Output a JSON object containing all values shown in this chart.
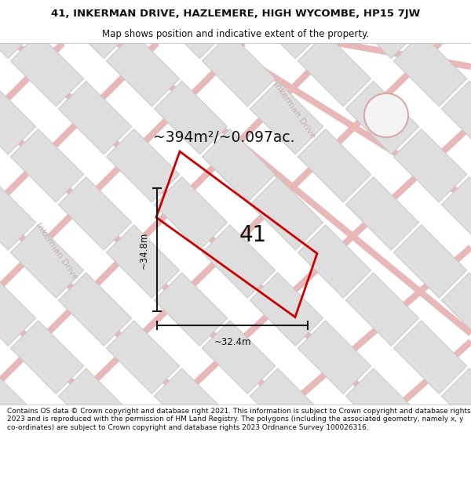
{
  "title_line1": "41, INKERMAN DRIVE, HAZLEMERE, HIGH WYCOMBE, HP15 7JW",
  "title_line2": "Map shows position and indicative extent of the property.",
  "footer_text": "Contains OS data © Crown copyright and database right 2021. This information is subject to Crown copyright and database rights 2023 and is reproduced with the permission of HM Land Registry. The polygons (including the associated geometry, namely x, y co-ordinates) are subject to Crown copyright and database rights 2023 Ordnance Survey 100026316.",
  "area_label": "~394m²/~0.097ac.",
  "property_number": "41",
  "dim_height_label": "~34.8m",
  "dim_width_label": "~32.4m",
  "map_bg": "#f5f4f4",
  "road_color": "#e8b8b8",
  "road_color2": "#dba8a8",
  "block_color": "#dedede",
  "block_edge_color": "#c8c8c8",
  "property_edge": "#cc0000",
  "dim_line_color": "#1a1a1a",
  "text_color": "#111111",
  "road_label_color": "#c0b0b0",
  "title_fontsize": 9.5,
  "subtitle_fontsize": 8.5,
  "area_fontsize": 13.5,
  "number_fontsize": 20,
  "dim_fontsize": 8.5,
  "road_label_fontsize": 8.0,
  "footer_fontsize": 6.5
}
